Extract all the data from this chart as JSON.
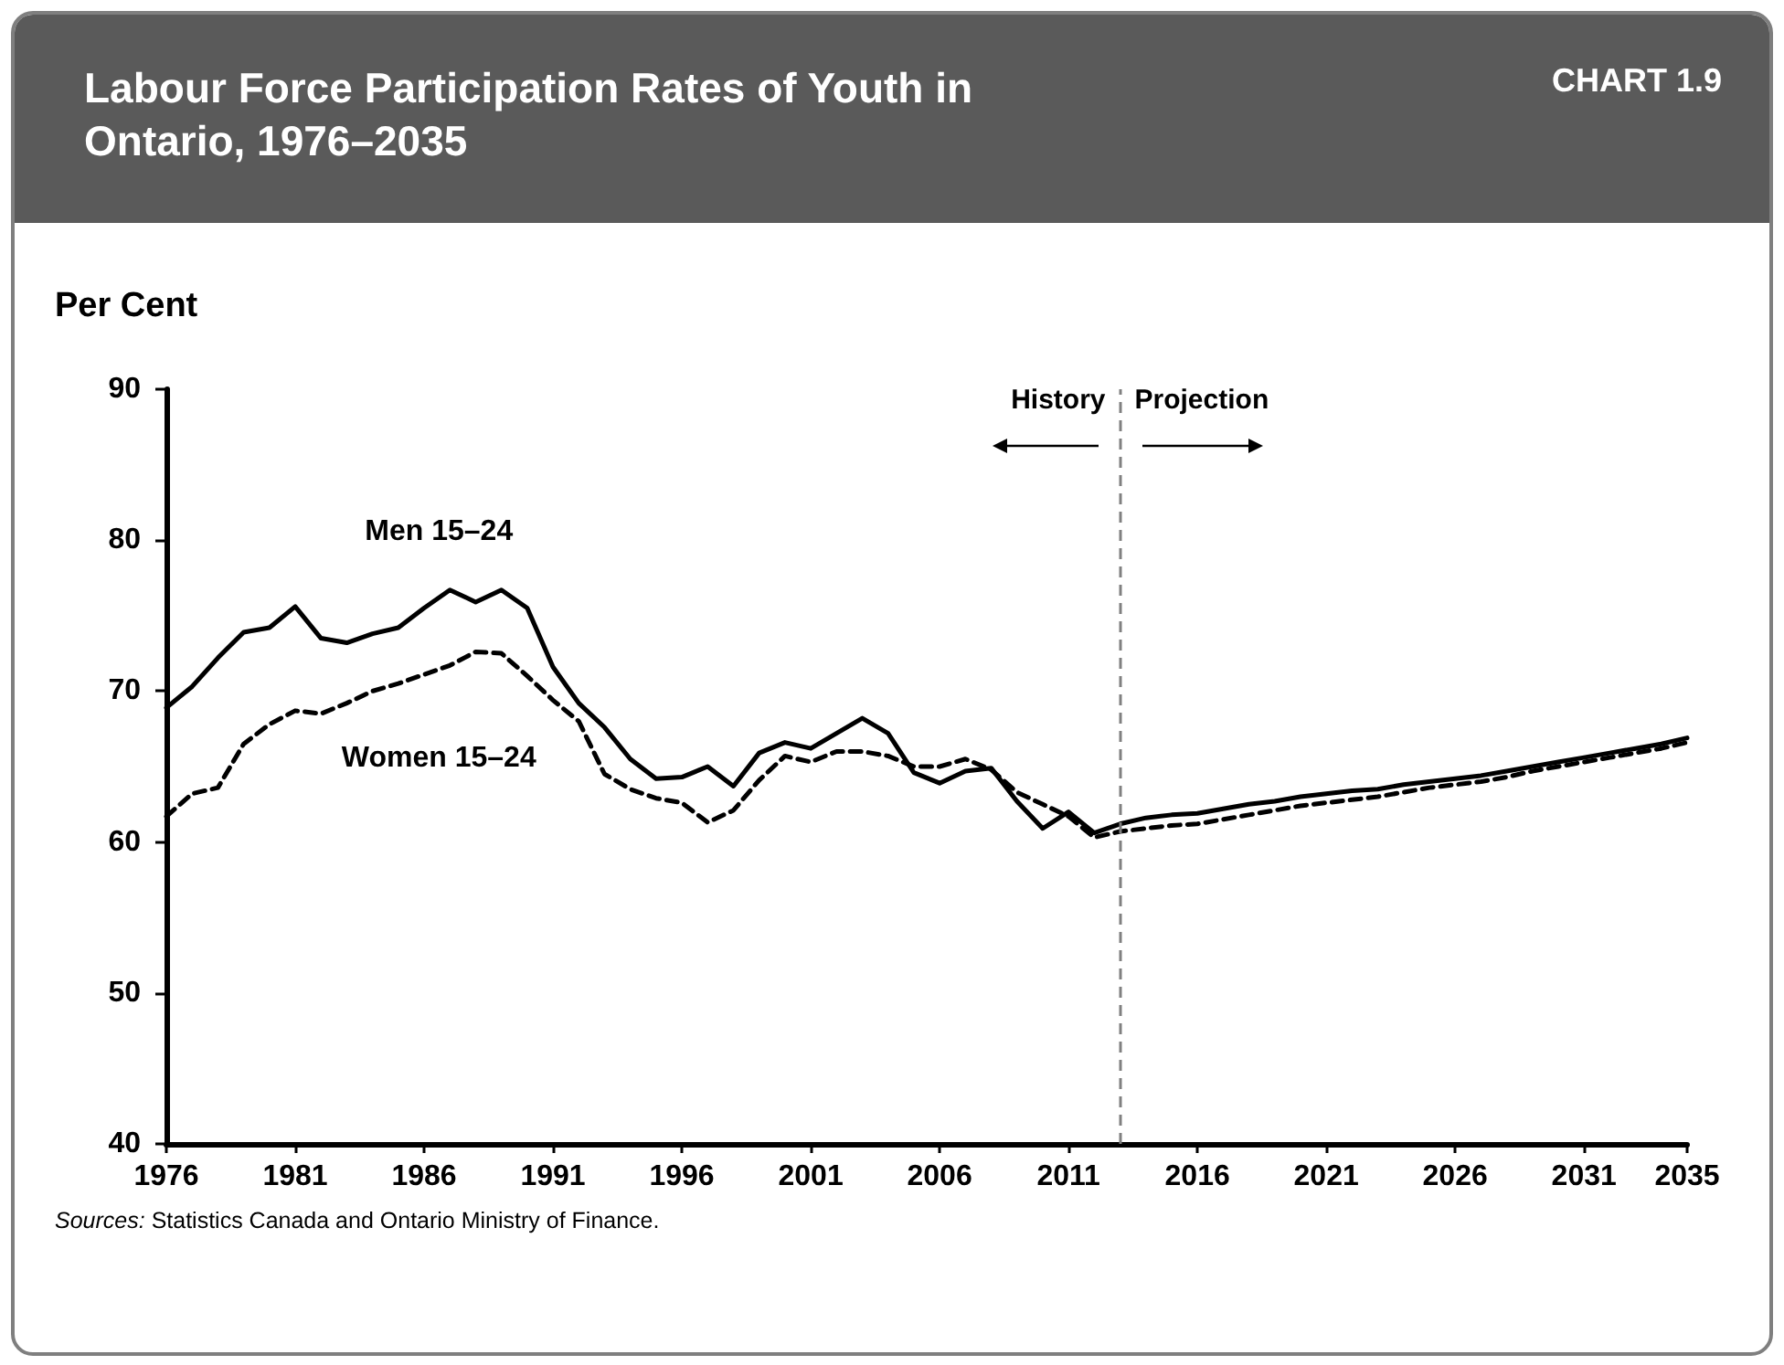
{
  "chart_data": {
    "type": "line",
    "title": "Labour Force Participation Rates of Youth in Ontario, 1976–2035",
    "ylabel": "Per Cent",
    "annotations": [
      "CHART 1.9",
      "Sources: Statistics Canada and Ontario Ministry of Finance.",
      "History",
      "Projection"
    ],
    "x": [
      1976,
      1977,
      1978,
      1979,
      1980,
      1981,
      1982,
      1983,
      1984,
      1985,
      1986,
      1987,
      1988,
      1989,
      1990,
      1991,
      1992,
      1993,
      1994,
      1995,
      1996,
      1997,
      1998,
      1999,
      2000,
      2001,
      2002,
      2003,
      2004,
      2005,
      2006,
      2007,
      2008,
      2009,
      2010,
      2011,
      2012,
      2013,
      2014,
      2015,
      2016,
      2017,
      2018,
      2019,
      2020,
      2021,
      2022,
      2023,
      2024,
      2025,
      2026,
      2027,
      2028,
      2029,
      2030,
      2031,
      2032,
      2033,
      2034,
      2035
    ],
    "series": [
      {
        "name": "Men 15–24",
        "color": "#000000",
        "line_style": "solid",
        "values": [
          68.9,
          70.3,
          72.2,
          73.9,
          74.2,
          75.6,
          73.5,
          73.2,
          73.8,
          74.2,
          75.5,
          76.7,
          75.9,
          76.7,
          75.5,
          71.6,
          69.2,
          67.6,
          65.5,
          64.2,
          64.3,
          65.0,
          63.7,
          65.9,
          66.6,
          66.2,
          67.2,
          68.2,
          67.2,
          64.6,
          63.9,
          64.7,
          64.9,
          62.7,
          60.9,
          62.0,
          60.6,
          61.2,
          61.6,
          61.8,
          61.9,
          62.2,
          62.5,
          62.7,
          63.0,
          63.2,
          63.4,
          63.5,
          63.8,
          64.0,
          64.2,
          64.4,
          64.7,
          65.0,
          65.3,
          65.6,
          65.9,
          66.2,
          66.5,
          66.9
        ]
      },
      {
        "name": "Women 15–24",
        "color": "#000000",
        "line_style": "dashed",
        "values": [
          61.7,
          63.2,
          63.6,
          66.5,
          67.8,
          68.7,
          68.5,
          69.2,
          70.0,
          70.5,
          71.1,
          71.7,
          72.6,
          72.5,
          71.0,
          69.4,
          68.0,
          64.5,
          63.5,
          62.9,
          62.6,
          61.3,
          62.1,
          64.1,
          65.7,
          65.3,
          66.0,
          66.0,
          65.7,
          65.0,
          65.0,
          65.5,
          64.8,
          63.3,
          62.5,
          61.7,
          60.3,
          60.7,
          60.9,
          61.1,
          61.2,
          61.5,
          61.8,
          62.1,
          62.4,
          62.6,
          62.8,
          63.0,
          63.3,
          63.6,
          63.8,
          64.0,
          64.3,
          64.7,
          65.0,
          65.3,
          65.6,
          65.9,
          66.2,
          66.6
        ]
      }
    ],
    "xlim": [
      1976,
      2035
    ],
    "xticks": [
      1976,
      1981,
      1986,
      1991,
      1996,
      2001,
      2006,
      2011,
      2016,
      2021,
      2026,
      2031,
      2035
    ],
    "ylim": [
      40,
      90
    ],
    "yticks": [
      40,
      50,
      60,
      70,
      80,
      90
    ],
    "ref_lines": [
      {
        "axis": "x",
        "value": 2013,
        "color": "#808080",
        "line_style": "dashed"
      }
    ],
    "grid": false,
    "legend": false,
    "marker": "none"
  }
}
